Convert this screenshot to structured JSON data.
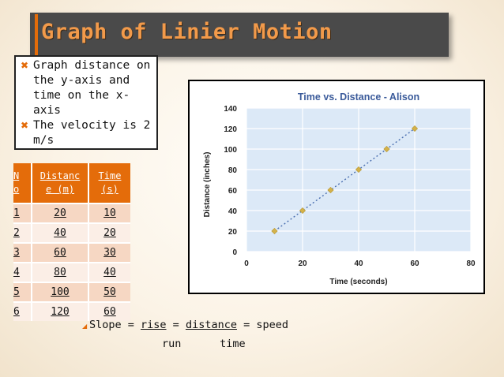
{
  "slide": {
    "title": "Graph of Linier Motion"
  },
  "bullets": [
    {
      "icon": "x-bullet-icon",
      "lines": [
        "Graph distance on",
        "the y-axis and",
        "time on the x-",
        "axis"
      ]
    },
    {
      "icon": "x-bullet-icon",
      "lines": [
        "The velocity is 2",
        "m/s"
      ]
    }
  ],
  "table": {
    "headers": [
      [
        "N",
        "o"
      ],
      [
        "Distanc",
        "e (m)"
      ],
      [
        "Time",
        "(s)"
      ]
    ],
    "rows": [
      [
        "1",
        "20",
        "10"
      ],
      [
        "2",
        "40",
        "20"
      ],
      [
        "3",
        "60",
        "30"
      ],
      [
        "4",
        "80",
        "40"
      ],
      [
        "5",
        "100",
        "50"
      ],
      [
        "6",
        "120",
        "60"
      ]
    ]
  },
  "chart_data": {
    "type": "scatter",
    "title": "Time vs. Distance - Alison",
    "xlabel": "Time (seconds)",
    "ylabel": "Distance (inches)",
    "xlim": [
      0,
      80
    ],
    "ylim": [
      0,
      140
    ],
    "xticks": [
      0,
      20,
      40,
      60,
      80
    ],
    "yticks": [
      0,
      20,
      40,
      60,
      80,
      100,
      120,
      140
    ],
    "grid": true,
    "trendline": "dotted",
    "colors": {
      "points": "#d4b24a",
      "line": "#4a6fb0",
      "plot_bg": "#dce9f7",
      "title": "#3a5a9a"
    },
    "series": [
      {
        "x": [
          10,
          20,
          30,
          40,
          50,
          60
        ],
        "y": [
          20,
          40,
          60,
          80,
          100,
          120
        ]
      }
    ]
  },
  "slope": {
    "line1_prefix": "Slope = ",
    "rise": "rise",
    "mid": " = ",
    "distance": "distance",
    "suffix": " = speed",
    "line2": "run      time"
  },
  "colors": {
    "accent": "#e46c0a",
    "title_bar": "#4a4a4a"
  }
}
